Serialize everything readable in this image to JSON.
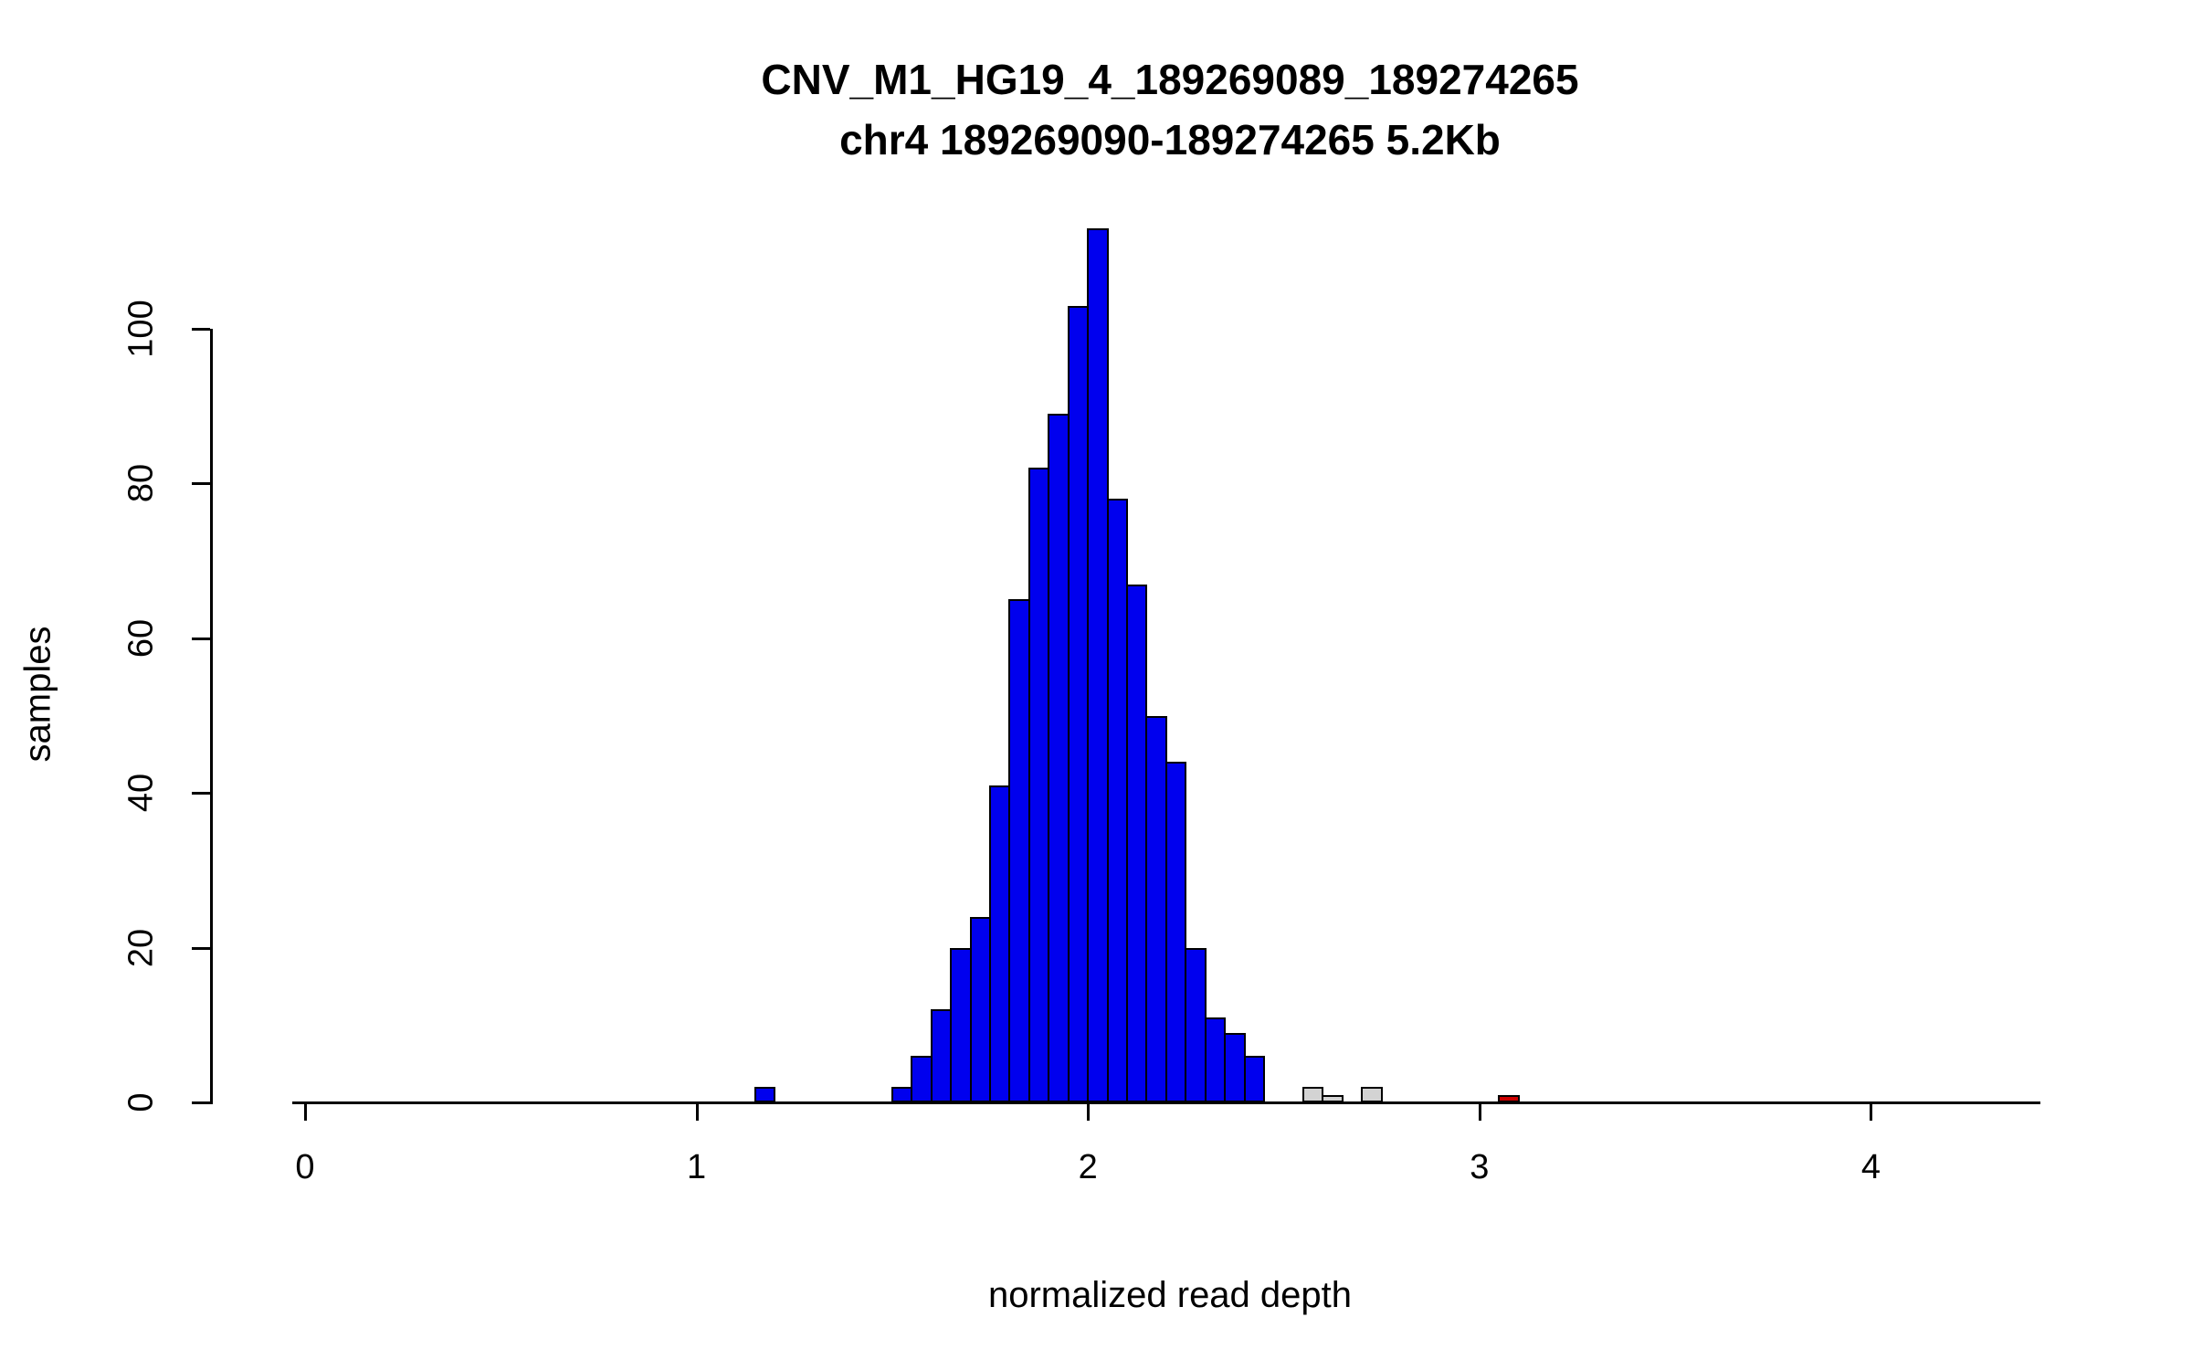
{
  "chart_data": {
    "type": "bar",
    "title": "CNV_M1_HG19_4_189269089_189274265",
    "subtitle": "chr4 189269090-189274265 5.2Kb",
    "xlabel": "normalized read depth",
    "ylabel": "samples",
    "xlim": [
      0,
      4.4
    ],
    "ylim": [
      0,
      113
    ],
    "x_ticks": [
      "0",
      "1",
      "2",
      "3",
      "4"
    ],
    "y_ticks": [
      "0",
      "20",
      "40",
      "60",
      "80",
      "100"
    ],
    "bin_width": 0.05,
    "grid": "off",
    "legend": "none",
    "colors": {
      "normal": "#0000EE",
      "uncertain": "#D3D3D3",
      "outlier": "#CD0000"
    },
    "bars": [
      {
        "x": 1.15,
        "count": 2,
        "color": "normal"
      },
      {
        "x": 1.5,
        "count": 2,
        "color": "normal"
      },
      {
        "x": 1.55,
        "count": 6,
        "color": "normal"
      },
      {
        "x": 1.6,
        "count": 12,
        "color": "normal"
      },
      {
        "x": 1.65,
        "count": 20,
        "color": "normal"
      },
      {
        "x": 1.7,
        "count": 24,
        "color": "normal"
      },
      {
        "x": 1.75,
        "count": 41,
        "color": "normal"
      },
      {
        "x": 1.8,
        "count": 65,
        "color": "normal"
      },
      {
        "x": 1.85,
        "count": 82,
        "color": "normal"
      },
      {
        "x": 1.9,
        "count": 89,
        "color": "normal"
      },
      {
        "x": 1.95,
        "count": 103,
        "color": "normal"
      },
      {
        "x": 2.0,
        "count": 113,
        "color": "normal"
      },
      {
        "x": 2.05,
        "count": 78,
        "color": "normal"
      },
      {
        "x": 2.1,
        "count": 67,
        "color": "normal"
      },
      {
        "x": 2.15,
        "count": 50,
        "color": "normal"
      },
      {
        "x": 2.2,
        "count": 44,
        "color": "normal"
      },
      {
        "x": 2.25,
        "count": 20,
        "color": "normal"
      },
      {
        "x": 2.3,
        "count": 11,
        "color": "normal"
      },
      {
        "x": 2.35,
        "count": 9,
        "color": "normal"
      },
      {
        "x": 2.4,
        "count": 6,
        "color": "normal"
      },
      {
        "x": 2.55,
        "count": 2,
        "color": "uncertain"
      },
      {
        "x": 2.6,
        "count": 1,
        "color": "uncertain"
      },
      {
        "x": 2.7,
        "count": 2,
        "color": "uncertain"
      },
      {
        "x": 3.05,
        "count": 1,
        "color": "outlier"
      }
    ]
  }
}
